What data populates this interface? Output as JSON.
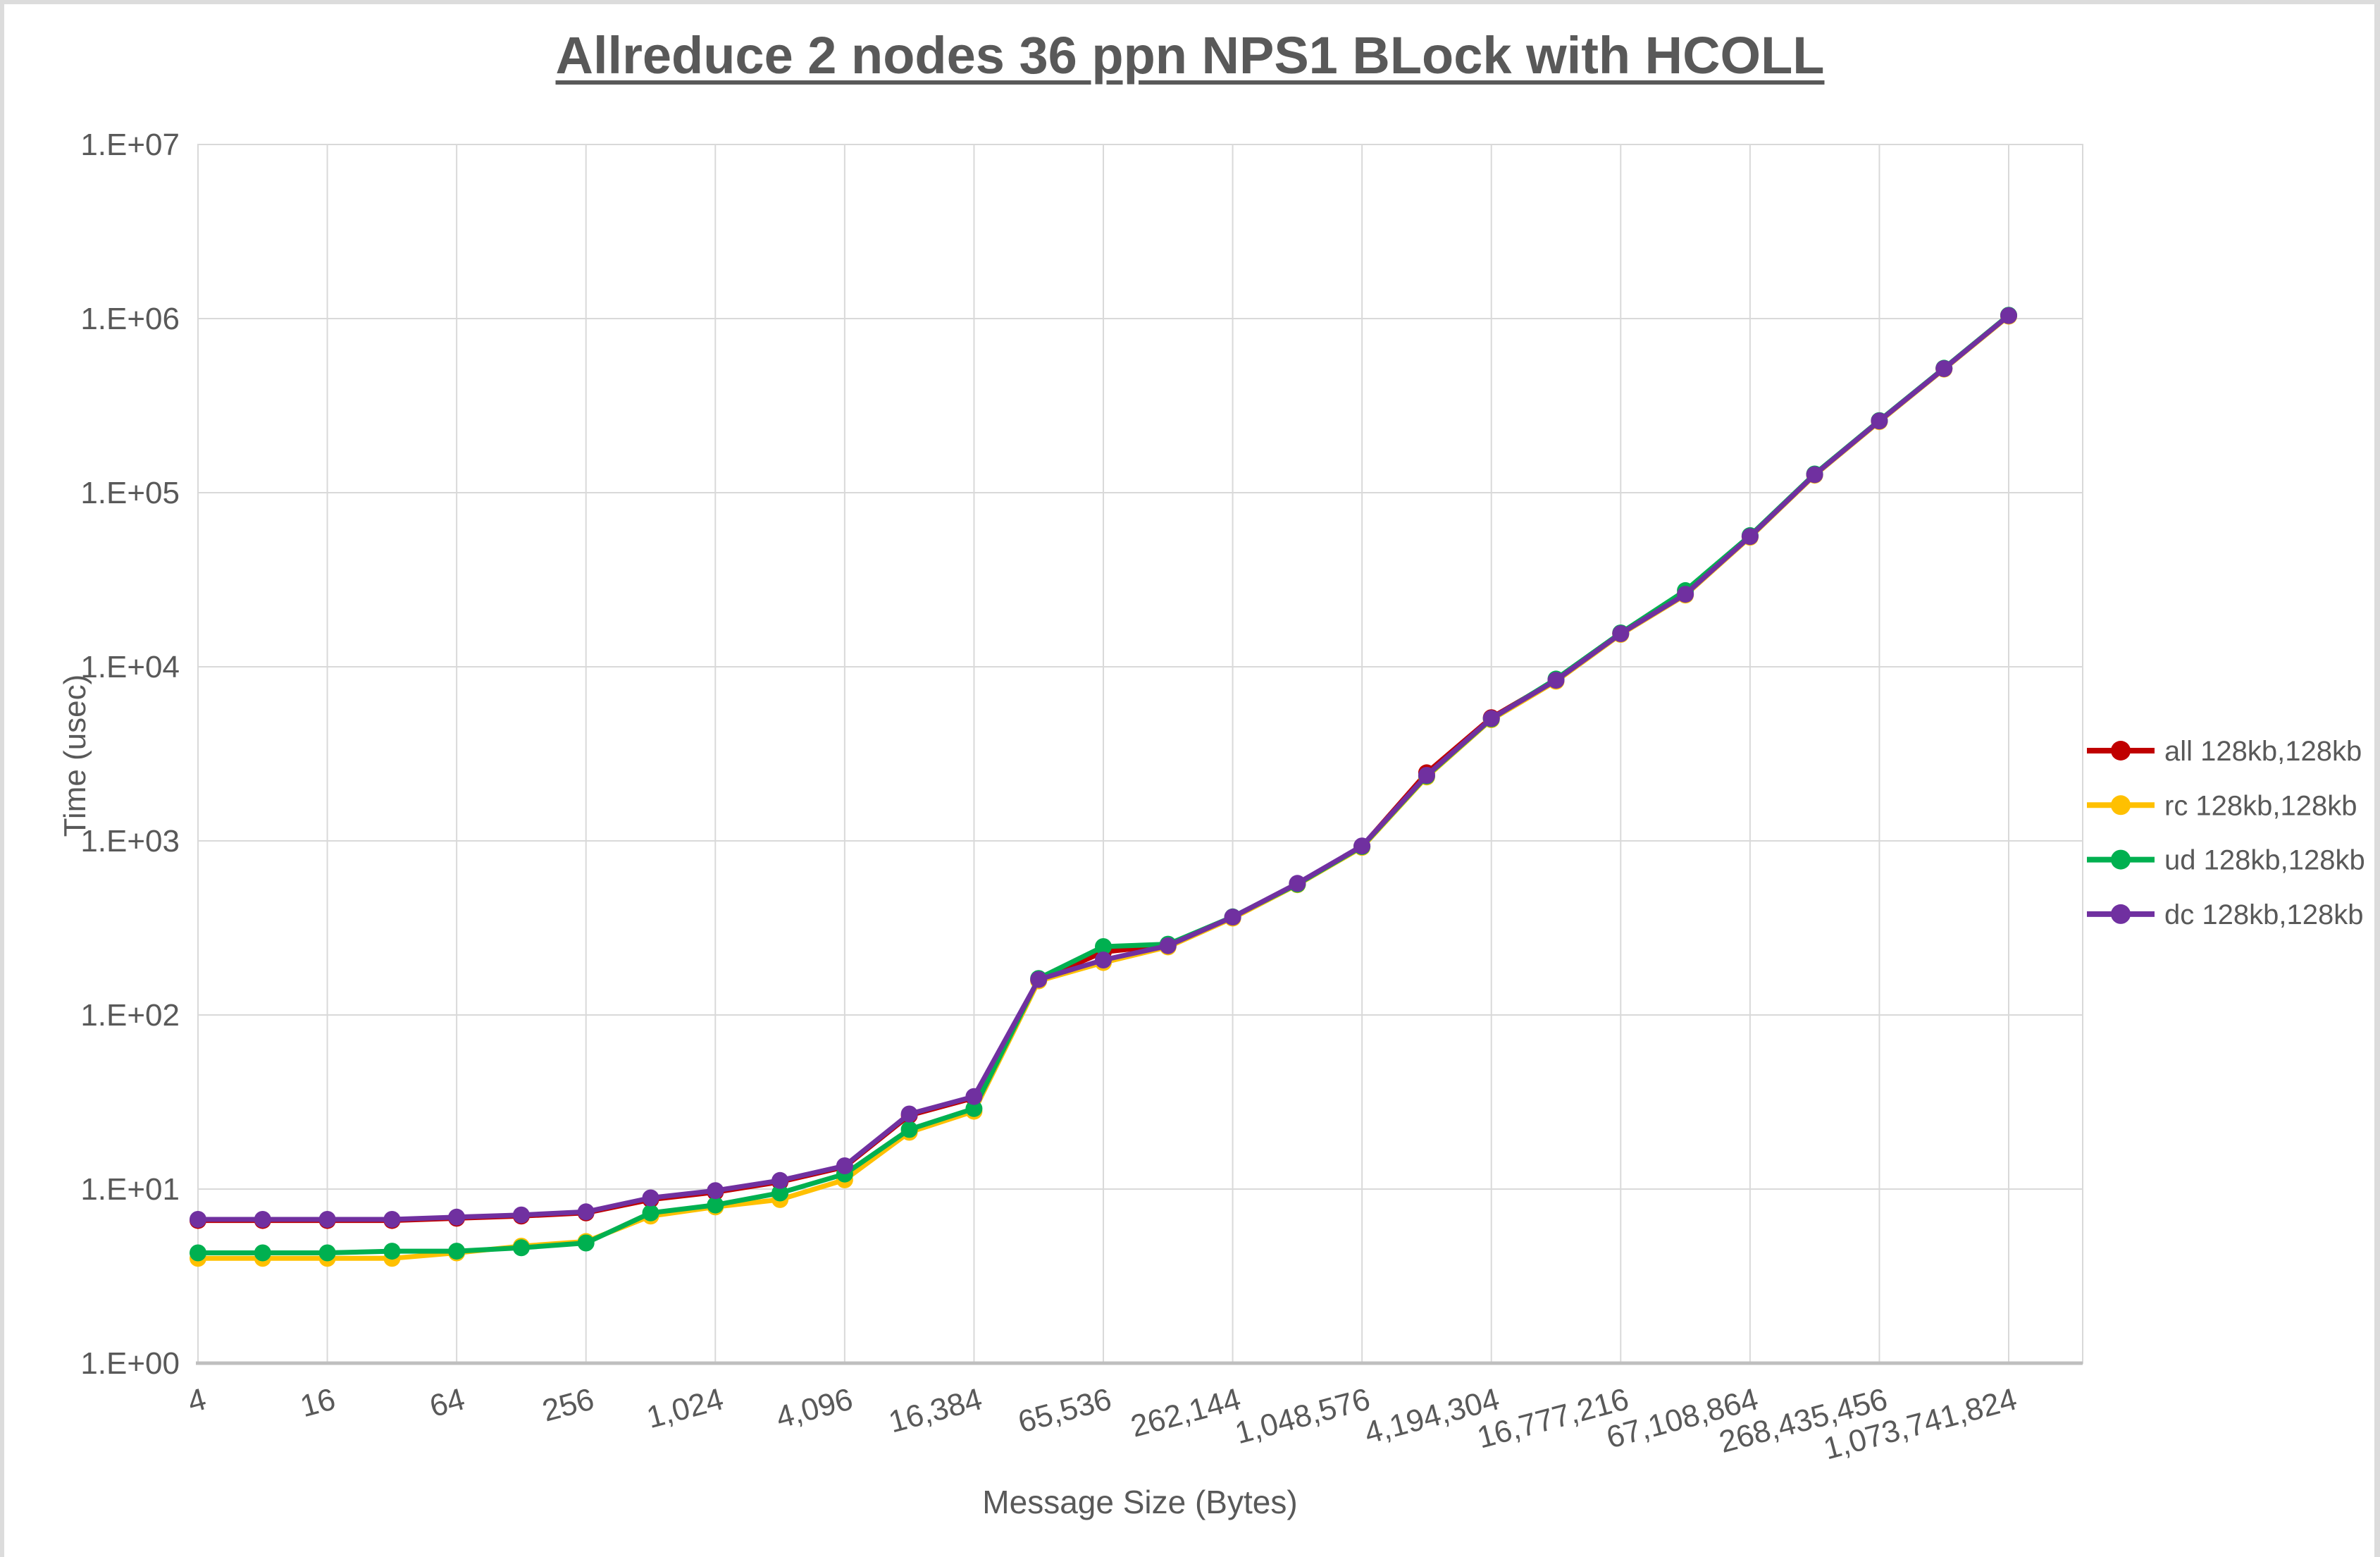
{
  "window": {
    "frame_color": "#dcdcdc",
    "background": "#ffffff"
  },
  "style": {
    "grid_color": "#d9d9d9",
    "axis_line_color": "#bfbfbf",
    "text_color": "#595959",
    "title_color": "#595959"
  },
  "chart_data": {
    "type": "line",
    "title": "Allreduce 2 nodes 36 ppn NPS1 BLock with HCOLL",
    "xlabel": "Message Size (Bytes)",
    "ylabel": "Time (usec)",
    "grid": true,
    "legend_position": "right",
    "y_axis": {
      "scale": "log10",
      "ylim": [
        1,
        10000000
      ],
      "tick_labels": [
        "1.E+00",
        "1.E+01",
        "1.E+02",
        "1.E+03",
        "1.E+04",
        "1.E+05",
        "1.E+06",
        "1.E+07"
      ]
    },
    "x_axis": {
      "scale": "log2",
      "label_every": 2,
      "values": [
        4,
        8,
        16,
        32,
        64,
        128,
        256,
        512,
        1024,
        2048,
        4096,
        8192,
        16384,
        32768,
        65536,
        131072,
        262144,
        524288,
        1048576,
        2097152,
        4194304,
        8388608,
        16777216,
        33554432,
        67108864,
        134217728,
        268435456,
        536870912,
        1073741824
      ],
      "tick_labels": [
        "4",
        "16",
        "64",
        "256",
        "1,024",
        "4,096",
        "16,384",
        "65,536",
        "262,144",
        "1,048,576",
        "4,194,304",
        "16,777,216",
        "67,108,864",
        "268,435,456",
        "1,073,741,824"
      ]
    },
    "series": [
      {
        "name": "all 128kb,128kb",
        "color": "#C00000",
        "values": [
          6.6,
          6.6,
          6.6,
          6.6,
          6.8,
          7.0,
          7.3,
          8.7,
          9.6,
          11.0,
          13.4,
          26.5,
          33.4,
          158,
          230,
          252,
          363,
          566,
          930,
          2460,
          5100,
          8400,
          15550,
          26200,
          56200,
          127400,
          258800,
          517500,
          1043000
        ]
      },
      {
        "name": "rc 128kb,128kb",
        "color": "#FFC000",
        "values": [
          4.0,
          4.0,
          4.0,
          4.0,
          4.3,
          4.7,
          5.0,
          7.0,
          7.9,
          8.7,
          11.3,
          21.2,
          28,
          157,
          200,
          246,
          360,
          560,
          918,
          2330,
          4970,
          8260,
          15350,
          25800,
          55500,
          126000,
          256000,
          512500,
          1032000
        ]
      },
      {
        "name": "ud 128kb,128kb",
        "color": "#00B050",
        "values": [
          4.3,
          4.3,
          4.3,
          4.4,
          4.4,
          4.6,
          4.9,
          7.3,
          8.1,
          9.5,
          12.2,
          22,
          29,
          162,
          247,
          255,
          366,
          564,
          928,
          2360,
          5020,
          8500,
          15650,
          27400,
          56700,
          128000,
          259500,
          519000,
          1046000
        ]
      },
      {
        "name": "dc 128kb,128kb",
        "color": "#7030A0",
        "values": [
          6.7,
          6.7,
          6.7,
          6.7,
          6.9,
          7.1,
          7.4,
          8.9,
          9.8,
          11.2,
          13.6,
          27,
          34,
          160,
          207,
          250,
          365,
          570,
          935,
          2380,
          5050,
          8370,
          15500,
          26100,
          56000,
          127000,
          258000,
          516000,
          1040000
        ]
      }
    ]
  }
}
